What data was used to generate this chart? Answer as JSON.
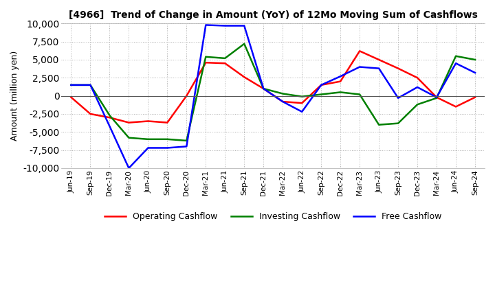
{
  "title": "[4966]  Trend of Change in Amount (YoY) of 12Mo Moving Sum of Cashflows",
  "ylabel": "Amount (million yen)",
  "ylim": [
    -10000,
    10000
  ],
  "yticks": [
    -10000,
    -7500,
    -5000,
    -2500,
    0,
    2500,
    5000,
    7500,
    10000
  ],
  "dates": [
    "Jun-19",
    "Sep-19",
    "Dec-19",
    "Mar-20",
    "Jun-20",
    "Sep-20",
    "Dec-20",
    "Mar-21",
    "Jun-21",
    "Sep-21",
    "Dec-21",
    "Mar-22",
    "Jun-22",
    "Sep-22",
    "Dec-22",
    "Mar-23",
    "Jun-23",
    "Sep-23",
    "Dec-23",
    "Mar-24",
    "Jun-24",
    "Sep-24"
  ],
  "operating": [
    -200,
    -2500,
    -3000,
    -3700,
    -3500,
    -3700,
    0,
    4600,
    4500,
    2600,
    1000,
    -800,
    -1000,
    1500,
    2000,
    6200,
    5000,
    3800,
    2500,
    -200,
    -1500,
    -200
  ],
  "investing": [
    1500,
    1500,
    -2700,
    -5800,
    -6000,
    -6000,
    -6200,
    5400,
    5200,
    7200,
    1000,
    300,
    -100,
    200,
    500,
    200,
    -4000,
    -3800,
    -1200,
    -300,
    5500,
    5000
  ],
  "free": [
    1500,
    1500,
    -4200,
    -10000,
    -7200,
    -7200,
    -7000,
    9800,
    9700,
    9700,
    1000,
    -800,
    -2200,
    1500,
    2700,
    4000,
    3800,
    -300,
    1200,
    -200,
    4500,
    3200
  ],
  "operating_color": "#ff0000",
  "investing_color": "#008000",
  "free_color": "#0000ff",
  "line_width": 1.8,
  "background_color": "#ffffff",
  "grid_color": "#b0b0b0",
  "grid_style": ":"
}
